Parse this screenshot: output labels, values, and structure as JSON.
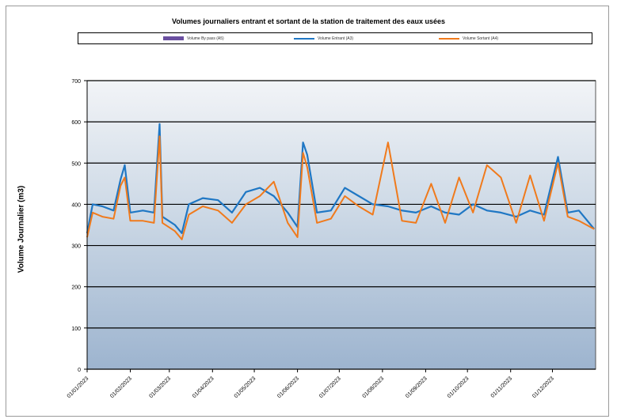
{
  "chart_data": {
    "type": "line",
    "title": "Volumes journaliers entrant et sortant de la station de traitement des eaux usées",
    "xlabel": "",
    "ylabel": "Volume Journalier (m3)",
    "ylim": [
      0,
      700
    ],
    "yticks": [
      0,
      100,
      200,
      300,
      400,
      500,
      600,
      700
    ],
    "x_tick_labels": [
      "01/01/2023",
      "01/02/2023",
      "01/03/2023",
      "01/04/2023",
      "01/05/2023",
      "01/06/2023",
      "01/07/2023",
      "01/08/2023",
      "01/09/2023",
      "01/10/2023",
      "01/11/2023",
      "01/12/2023"
    ],
    "grid": true,
    "legend_position": "top",
    "series": [
      {
        "name": "Volume By pass (A5)",
        "color": "#6a4fa0",
        "values": []
      },
      {
        "name": "Volume Entrant (A3)",
        "color": "#1f77c4",
        "points": [
          [
            "01/01/2023",
            330
          ],
          [
            "05/01/2023",
            400
          ],
          [
            "12/01/2023",
            395
          ],
          [
            "20/01/2023",
            385
          ],
          [
            "25/01/2023",
            460
          ],
          [
            "28/01/2023",
            495
          ],
          [
            "01/02/2023",
            380
          ],
          [
            "10/02/2023",
            385
          ],
          [
            "18/02/2023",
            380
          ],
          [
            "22/02/2023",
            595
          ],
          [
            "24/02/2023",
            370
          ],
          [
            "05/03/2023",
            350
          ],
          [
            "10/03/2023",
            330
          ],
          [
            "15/03/2023",
            400
          ],
          [
            "25/03/2023",
            415
          ],
          [
            "05/04/2023",
            410
          ],
          [
            "15/04/2023",
            380
          ],
          [
            "25/04/2023",
            430
          ],
          [
            "05/05/2023",
            440
          ],
          [
            "15/05/2023",
            420
          ],
          [
            "25/05/2023",
            380
          ],
          [
            "01/06/2023",
            345
          ],
          [
            "05/06/2023",
            550
          ],
          [
            "08/06/2023",
            520
          ],
          [
            "15/06/2023",
            380
          ],
          [
            "25/06/2023",
            385
          ],
          [
            "05/07/2023",
            440
          ],
          [
            "15/07/2023",
            420
          ],
          [
            "25/07/2023",
            400
          ],
          [
            "05/08/2023",
            395
          ],
          [
            "15/08/2023",
            385
          ],
          [
            "25/08/2023",
            380
          ],
          [
            "05/09/2023",
            395
          ],
          [
            "15/09/2023",
            380
          ],
          [
            "25/09/2023",
            375
          ],
          [
            "05/10/2023",
            400
          ],
          [
            "15/10/2023",
            385
          ],
          [
            "25/10/2023",
            380
          ],
          [
            "05/11/2023",
            370
          ],
          [
            "15/11/2023",
            385
          ],
          [
            "25/11/2023",
            375
          ],
          [
            "05/12/2023",
            515
          ],
          [
            "12/12/2023",
            380
          ],
          [
            "20/12/2023",
            385
          ],
          [
            "31/12/2023",
            340
          ]
        ]
      },
      {
        "name": "Volume Sortant (A4)",
        "color": "#f07a1c",
        "points": [
          [
            "01/01/2023",
            320
          ],
          [
            "05/01/2023",
            380
          ],
          [
            "12/01/2023",
            370
          ],
          [
            "20/01/2023",
            365
          ],
          [
            "25/01/2023",
            445
          ],
          [
            "28/01/2023",
            465
          ],
          [
            "01/02/2023",
            360
          ],
          [
            "10/02/2023",
            360
          ],
          [
            "18/02/2023",
            355
          ],
          [
            "22/02/2023",
            565
          ],
          [
            "24/02/2023",
            355
          ],
          [
            "05/03/2023",
            335
          ],
          [
            "10/03/2023",
            315
          ],
          [
            "15/03/2023",
            375
          ],
          [
            "25/03/2023",
            395
          ],
          [
            "05/04/2023",
            385
          ],
          [
            "15/04/2023",
            355
          ],
          [
            "25/04/2023",
            400
          ],
          [
            "05/05/2023",
            420
          ],
          [
            "15/05/2023",
            455
          ],
          [
            "25/05/2023",
            355
          ],
          [
            "01/06/2023",
            320
          ],
          [
            "05/06/2023",
            525
          ],
          [
            "08/06/2023",
            490
          ],
          [
            "15/06/2023",
            355
          ],
          [
            "25/06/2023",
            365
          ],
          [
            "05/07/2023",
            420
          ],
          [
            "15/07/2023",
            395
          ],
          [
            "25/07/2023",
            375
          ],
          [
            "05/08/2023",
            550
          ],
          [
            "15/08/2023",
            360
          ],
          [
            "25/08/2023",
            355
          ],
          [
            "05/09/2023",
            450
          ],
          [
            "15/09/2023",
            355
          ],
          [
            "25/09/2023",
            465
          ],
          [
            "05/10/2023",
            380
          ],
          [
            "15/10/2023",
            495
          ],
          [
            "25/10/2023",
            465
          ],
          [
            "05/11/2023",
            355
          ],
          [
            "15/11/2023",
            470
          ],
          [
            "25/11/2023",
            360
          ],
          [
            "05/12/2023",
            500
          ],
          [
            "12/12/2023",
            370
          ],
          [
            "20/12/2023",
            360
          ],
          [
            "31/12/2023",
            340
          ]
        ]
      }
    ]
  }
}
